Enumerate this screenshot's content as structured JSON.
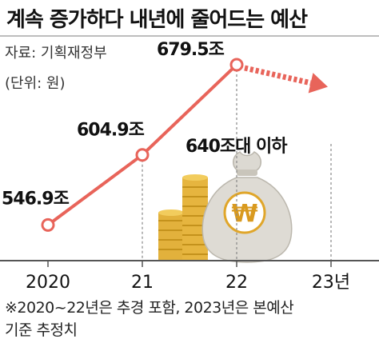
{
  "title": "계속 증가하다 내년에 줄어드는 예산",
  "source": "자료: 기획재정부",
  "unit": "(단위: 원)",
  "footnote_line1": "※2020~22년은 추경 포함, 2023년은 본예산",
  "footnote_line2": "기준 추정치",
  "colors": {
    "line": "#e8645a",
    "marker_fill": "#ffffff",
    "axis": "#555555",
    "guide": "#888888",
    "gold": "#e2b13c",
    "bag": "#d9d6cf",
    "won": "#d99a1f"
  },
  "icons": [
    "coin-stacks-icon",
    "money-bag-icon"
  ],
  "chart_data": {
    "type": "line",
    "categories": [
      "2020",
      "21",
      "22",
      "23년"
    ],
    "values": [
      546.9,
      604.9,
      679.5,
      640
    ],
    "value_labels": [
      "546.9조",
      "604.9조",
      "679.5조",
      "640조대 이하"
    ],
    "forecast_from_index": 2,
    "ylim": [
      520,
      700
    ],
    "grid": false,
    "vertical_guides": true
  }
}
